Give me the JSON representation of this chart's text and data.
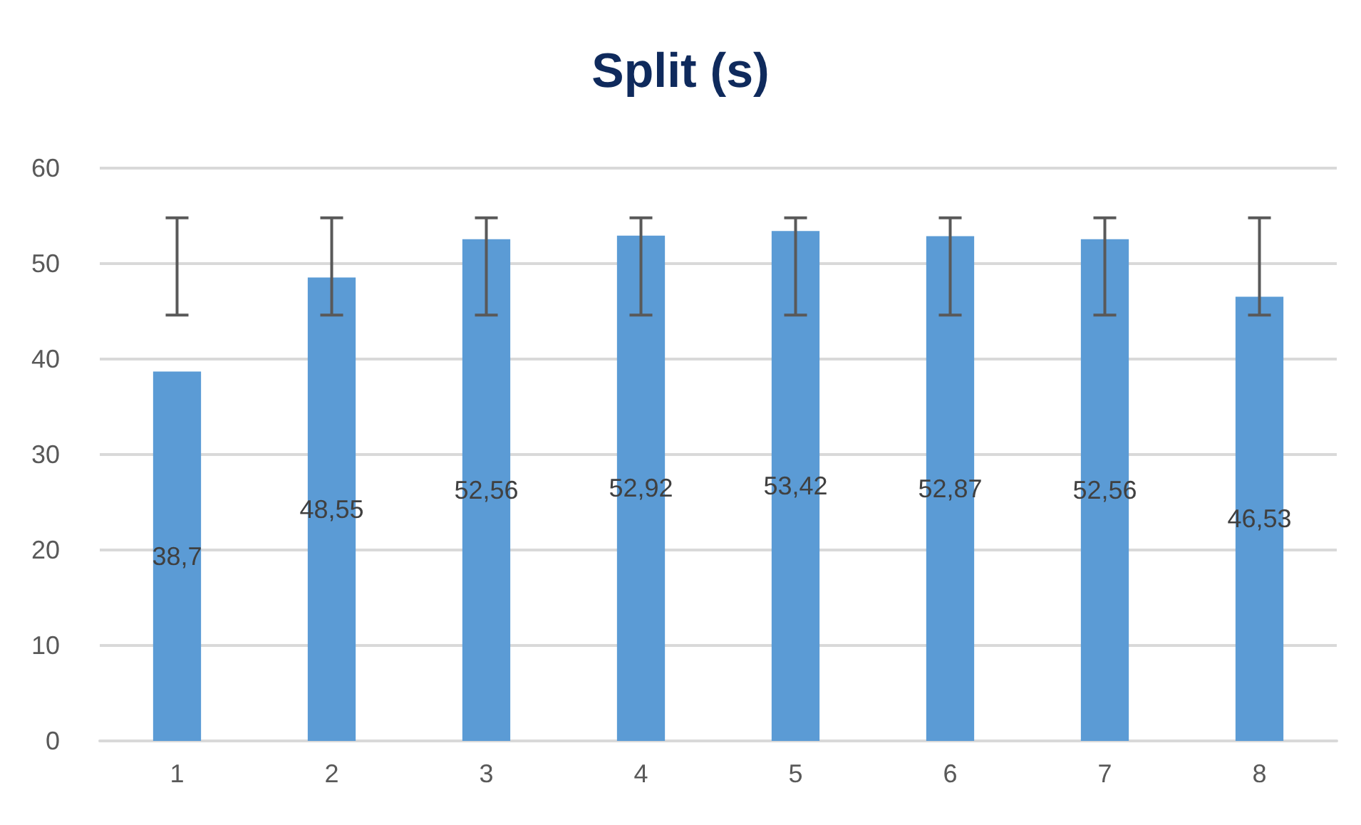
{
  "chart_data": {
    "type": "bar",
    "title": "Split (s)",
    "categories": [
      "1",
      "2",
      "3",
      "4",
      "5",
      "6",
      "7",
      "8"
    ],
    "values": [
      38.7,
      48.55,
      52.56,
      52.92,
      53.42,
      52.87,
      52.56,
      46.53
    ],
    "value_labels": [
      "38,7",
      "48,55",
      "52,56",
      "52,92",
      "53,42",
      "52,87",
      "52,56",
      "46,53"
    ],
    "errors": [
      [
        44.6,
        54.8
      ],
      [
        44.6,
        54.8
      ],
      [
        44.6,
        54.8
      ],
      [
        44.6,
        54.8
      ],
      [
        44.6,
        54.8
      ],
      [
        44.6,
        54.8
      ],
      [
        44.6,
        54.8
      ],
      [
        44.6,
        54.8
      ]
    ],
    "color": "#5b9bd5",
    "ylim": [
      0,
      60
    ],
    "yticks": [
      0,
      10,
      20,
      30,
      40,
      50,
      60
    ],
    "grid": "y"
  }
}
